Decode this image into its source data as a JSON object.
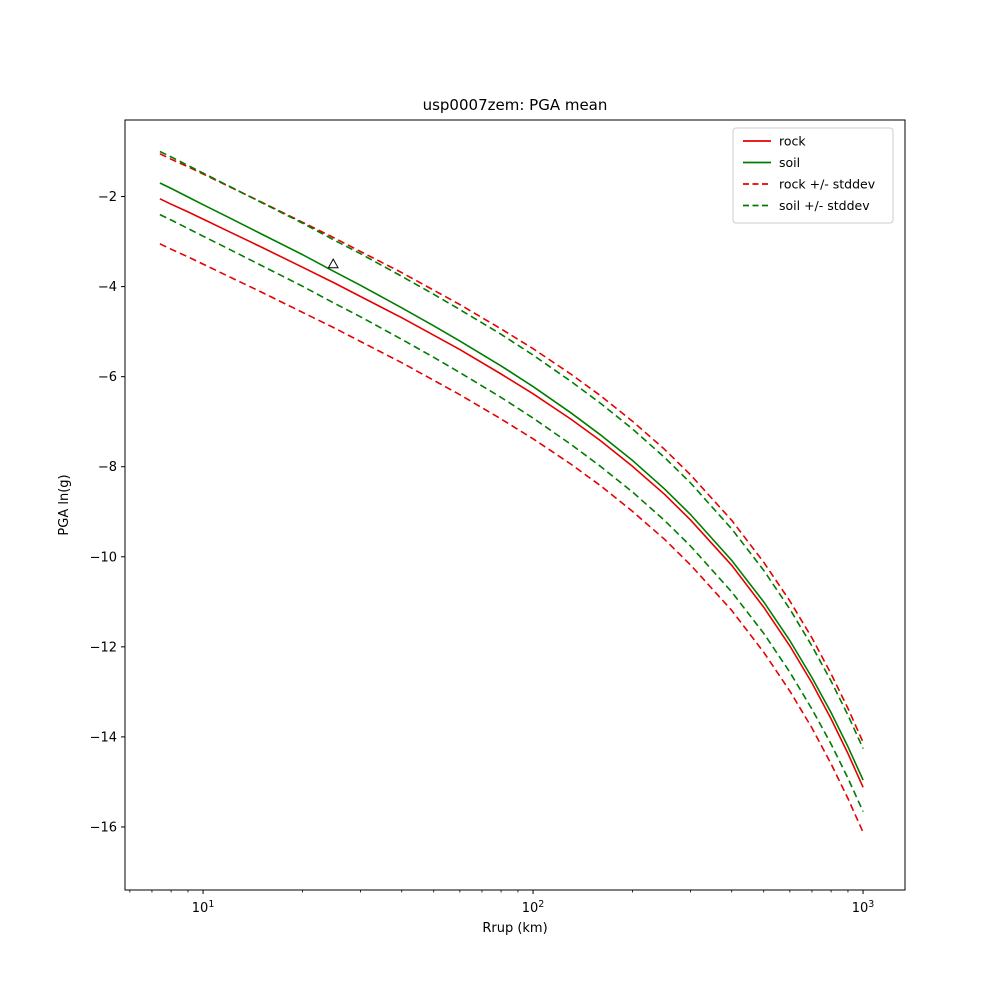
{
  "figure": {
    "title": "usp0007zem: PGA mean",
    "xlabel": "Rrup (km)",
    "ylabel": "PGA ln(g)",
    "background_color": "#ffffff",
    "axes_color": "#000000"
  },
  "chart_data": {
    "type": "line",
    "x_scale": "log",
    "y_scale": "linear",
    "xlim": [
      5.8,
      1340
    ],
    "ylim": [
      -17.4,
      -0.3
    ],
    "grid": false,
    "title": "usp0007zem: PGA mean",
    "xlabel": "Rrup (km)",
    "ylabel": "PGA ln(g)",
    "x_ticks": [
      10,
      100,
      1000
    ],
    "x_tick_labels": [
      {
        "base": "10",
        "sup": "1"
      },
      {
        "base": "10",
        "sup": "2"
      },
      {
        "base": "10",
        "sup": "3"
      }
    ],
    "x_minor_ticks": [
      6,
      7,
      8,
      9,
      20,
      30,
      40,
      50,
      60,
      70,
      80,
      90,
      200,
      300,
      400,
      500,
      600,
      700,
      800,
      900
    ],
    "y_ticks": [
      -2,
      -4,
      -6,
      -8,
      -10,
      -12,
      -14,
      -16
    ],
    "y_tick_labels": [
      "−2",
      "−4",
      "−6",
      "−8",
      "−10",
      "−12",
      "−14",
      "−16"
    ],
    "x": [
      7.4,
      8,
      9,
      10,
      12,
      15,
      20,
      25,
      30,
      40,
      50,
      60,
      80,
      100,
      130,
      160,
      200,
      250,
      300,
      400,
      500,
      600,
      700,
      800,
      900,
      1000
    ],
    "series": [
      {
        "name": "rock",
        "legend_label": "rock",
        "color": "#e60000",
        "dashed": false,
        "values": [
          -2.05,
          -2.17,
          -2.34,
          -2.5,
          -2.78,
          -3.12,
          -3.57,
          -3.92,
          -4.22,
          -4.69,
          -5.08,
          -5.4,
          -5.94,
          -6.38,
          -6.94,
          -7.42,
          -7.99,
          -8.61,
          -9.18,
          -10.19,
          -11.12,
          -11.98,
          -12.8,
          -13.6,
          -14.37,
          -15.12
        ]
      },
      {
        "name": "soil",
        "legend_label": "soil",
        "color": "#007d00",
        "dashed": false,
        "values": [
          -1.7,
          -1.82,
          -2.01,
          -2.18,
          -2.47,
          -2.83,
          -3.29,
          -3.67,
          -3.97,
          -4.47,
          -4.87,
          -5.21,
          -5.76,
          -6.22,
          -6.8,
          -7.29,
          -7.86,
          -8.49,
          -9.06,
          -10.08,
          -11.0,
          -11.86,
          -12.68,
          -13.46,
          -14.22,
          -14.96
        ]
      },
      {
        "name": "rock-plus-stddev",
        "legend_label": "rock +/- stddev",
        "color": "#e60000",
        "dashed": true,
        "values": [
          -1.05,
          -1.17,
          -1.34,
          -1.5,
          -1.78,
          -2.12,
          -2.57,
          -2.92,
          -3.22,
          -3.69,
          -4.08,
          -4.4,
          -4.94,
          -5.38,
          -5.94,
          -6.42,
          -6.99,
          -7.61,
          -8.18,
          -9.19,
          -10.12,
          -10.98,
          -11.8,
          -12.6,
          -13.37,
          -14.12
        ]
      },
      {
        "name": "rock-minus-stddev",
        "legend_label": null,
        "color": "#e60000",
        "dashed": true,
        "values": [
          -3.05,
          -3.17,
          -3.34,
          -3.5,
          -3.78,
          -4.12,
          -4.57,
          -4.92,
          -5.22,
          -5.69,
          -6.08,
          -6.4,
          -6.94,
          -7.38,
          -7.94,
          -8.42,
          -8.99,
          -9.61,
          -10.18,
          -11.19,
          -12.12,
          -12.98,
          -13.8,
          -14.6,
          -15.37,
          -16.12
        ]
      },
      {
        "name": "soil-plus-stddev",
        "legend_label": "soil +/- stddev",
        "color": "#007d00",
        "dashed": true,
        "values": [
          -1.0,
          -1.12,
          -1.31,
          -1.48,
          -1.77,
          -2.13,
          -2.59,
          -2.97,
          -3.27,
          -3.77,
          -4.17,
          -4.51,
          -5.06,
          -5.52,
          -6.1,
          -6.59,
          -7.16,
          -7.79,
          -8.36,
          -9.38,
          -10.3,
          -11.16,
          -11.98,
          -12.76,
          -13.52,
          -14.26
        ]
      },
      {
        "name": "soil-minus-stddev",
        "legend_label": null,
        "color": "#007d00",
        "dashed": true,
        "values": [
          -2.4,
          -2.52,
          -2.71,
          -2.88,
          -3.17,
          -3.53,
          -3.99,
          -4.37,
          -4.67,
          -5.17,
          -5.57,
          -5.91,
          -6.46,
          -6.92,
          -7.5,
          -7.99,
          -8.56,
          -9.19,
          -9.76,
          -10.78,
          -11.7,
          -12.56,
          -13.38,
          -14.16,
          -14.92,
          -15.66
        ]
      }
    ],
    "stddev": {
      "rock": 1.0,
      "soil": 0.7
    },
    "marker": {
      "shape": "triangle-up-open",
      "x": 24.8,
      "y": -3.5,
      "edge_color": "#000000"
    },
    "legend": {
      "position": "upper right",
      "entries": [
        "rock",
        "soil",
        "rock +/- stddev",
        "soil +/- stddev"
      ],
      "border_color": "#cccccc",
      "background_color": "#ffffff"
    }
  }
}
